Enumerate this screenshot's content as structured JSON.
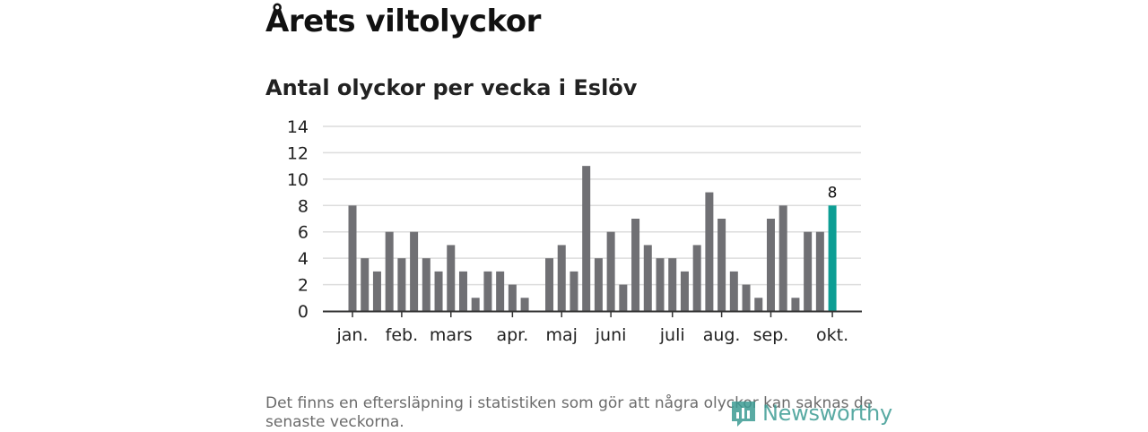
{
  "header": {
    "title": "Årets viltolyckor",
    "subtitle": "Antal olyckor per vecka i Eslöv"
  },
  "footer": {
    "note": "Det finns en eftersläpning i statistiken som gör att några olyckor kan saknas de senaste veckorna.",
    "brand": "Newsworthy"
  },
  "colors": {
    "bar": "#707074",
    "highlight": "#0d9e94",
    "grid": "#dcdcdc",
    "axis": "#333333",
    "brand": "#3d9c94"
  },
  "chart_data": {
    "type": "bar",
    "title": "Antal olyckor per vecka i Eslöv",
    "xlabel": "",
    "ylabel": "",
    "ylim": [
      0,
      14
    ],
    "yticks": [
      0,
      2,
      4,
      6,
      8,
      10,
      12,
      14
    ],
    "grid": true,
    "x": [
      1,
      2,
      3,
      4,
      5,
      6,
      7,
      8,
      9,
      10,
      11,
      12,
      13,
      14,
      15,
      16,
      17,
      18,
      19,
      20,
      21,
      22,
      23,
      24,
      25,
      26,
      27,
      28,
      29,
      30,
      31,
      32,
      33,
      34,
      35,
      36,
      37,
      38,
      39,
      40
    ],
    "values": [
      8,
      4,
      3,
      6,
      4,
      6,
      4,
      3,
      5,
      3,
      1,
      3,
      3,
      2,
      1,
      null,
      4,
      5,
      3,
      11,
      4,
      6,
      2,
      7,
      5,
      4,
      4,
      3,
      5,
      9,
      7,
      3,
      2,
      1,
      7,
      8,
      1,
      6,
      6,
      8
    ],
    "highlight_index": 39,
    "highlight_label": "8",
    "month_labels": [
      {
        "label": "jan.",
        "week": 1
      },
      {
        "label": "feb.",
        "week": 5
      },
      {
        "label": "mars",
        "week": 9
      },
      {
        "label": "apr.",
        "week": 14
      },
      {
        "label": "maj",
        "week": 18
      },
      {
        "label": "juni",
        "week": 22
      },
      {
        "label": "juli",
        "week": 27
      },
      {
        "label": "aug.",
        "week": 31
      },
      {
        "label": "sep.",
        "week": 35
      },
      {
        "label": "okt.",
        "week": 40
      }
    ]
  }
}
